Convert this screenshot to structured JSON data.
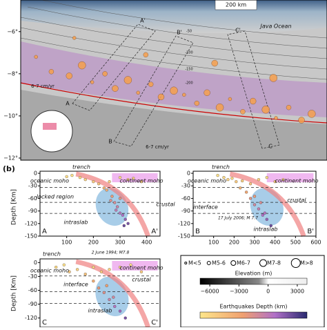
{
  "panel_label": "(b)",
  "chart_data": [
    {
      "type": "map",
      "ylim": [
        -12.1,
        -4.5
      ],
      "xlim": [
        104,
        116
      ],
      "yticks": [
        {
          "value": -6,
          "label": "−6°"
        },
        {
          "value": -8,
          "label": "−8°"
        },
        {
          "value": -10,
          "label": "−10°"
        },
        {
          "value": -12,
          "label": "−12°"
        }
      ],
      "annotations": [
        "200 km",
        "Java Ocean",
        "A'",
        "B'",
        "C'",
        "A",
        "B",
        "C",
        "6-7 cm/yr",
        "6-7 cm/yr",
        "-50",
        "-100",
        "-150",
        "-200"
      ],
      "x": [
        104.6,
        105.2,
        105.9,
        106.4,
        106.8,
        107.3,
        107.7,
        108.2,
        108.6,
        109.1,
        109.5,
        110.0,
        110.4,
        110.9,
        111.3,
        111.8,
        112.2,
        112.7,
        113.1,
        113.6,
        114.0,
        114.5,
        115.0,
        115.4,
        106.1,
        108.9,
        111.6,
        113.9
      ],
      "y": [
        -7.2,
        -7.9,
        -8.1,
        -7.6,
        -8.4,
        -8.0,
        -8.7,
        -8.3,
        -8.9,
        -8.5,
        -9.1,
        -8.8,
        -9.0,
        -9.4,
        -8.9,
        -9.6,
        -9.2,
        -9.8,
        -9.3,
        -9.7,
        -10.1,
        -9.6,
        -10.2,
        -9.9,
        -6.3,
        -7.1,
        -7.5,
        -8.2
      ],
      "color": "#f6a04d"
    },
    {
      "type": "scatter",
      "labels": [
        "A",
        "A'"
      ],
      "ylabel": "Depth [Km]",
      "xlim": [
        0,
        450
      ],
      "ylim": [
        -150,
        5
      ],
      "xticks": [
        100,
        200,
        300,
        400
      ],
      "yticks": [
        0,
        -30,
        -60,
        -90,
        -120,
        -150
      ],
      "annotations": [
        "trench",
        "oceanic moho",
        "continent moho",
        "locked region",
        "crustal",
        "intraslab"
      ],
      "x": [
        100,
        120,
        150,
        170,
        200,
        220,
        260,
        300,
        330,
        350,
        380,
        240,
        250,
        270,
        280,
        290,
        300,
        310,
        320,
        330,
        300,
        265,
        285,
        315
      ],
      "y": [
        -8,
        -5,
        -10,
        -15,
        -20,
        -25,
        -20,
        -10,
        -15,
        -12,
        -20,
        -35,
        -40,
        -55,
        -70,
        -80,
        -95,
        -100,
        -110,
        -120,
        -60,
        -65,
        -88,
        -125
      ]
    },
    {
      "type": "scatter",
      "labels": [
        "B",
        "B'"
      ],
      "xlim": [
        0,
        600
      ],
      "ylim": [
        -150,
        5
      ],
      "xticks": [
        100,
        200,
        300,
        400,
        500,
        600
      ],
      "yticks": [
        0,
        -30,
        -60,
        -90,
        -120,
        -150
      ],
      "annotations": [
        "trench",
        "oceanic moho",
        "continent moho",
        "interface",
        "crustal",
        "17 July 2006; M 7.7",
        "intraslab"
      ],
      "x": [
        120,
        150,
        170,
        190,
        210,
        240,
        280,
        320,
        360,
        400,
        440,
        230,
        260,
        280,
        300,
        320,
        340,
        360,
        380,
        300,
        330,
        350
      ],
      "y": [
        -5,
        -10,
        -15,
        -12,
        -20,
        -18,
        -25,
        -15,
        -10,
        -20,
        -15,
        -35,
        -45,
        -60,
        -75,
        -85,
        -100,
        -110,
        -125,
        -55,
        -70,
        -95
      ]
    },
    {
      "type": "scatter",
      "labels": [
        "C",
        "C'"
      ],
      "xlim": [
        0,
        450
      ],
      "ylim": [
        -140,
        8
      ],
      "yticks": [
        0,
        -30,
        -60,
        -90,
        -120
      ],
      "annotations": [
        "trench",
        "2 June 1994; M7.8",
        "oceanic moho",
        "continent moho",
        "interface",
        "crustal",
        "intraslab"
      ],
      "x": [
        60,
        90,
        110,
        140,
        170,
        200,
        230,
        260,
        300,
        340,
        380,
        200,
        220,
        240,
        260,
        280,
        300,
        320,
        250,
        275
      ],
      "y": [
        -10,
        -5,
        -20,
        -15,
        -25,
        -10,
        -20,
        -15,
        -10,
        -5,
        -20,
        -40,
        -55,
        -65,
        -80,
        -95,
        -105,
        -120,
        -50,
        -75
      ]
    },
    {
      "type": "colorbar",
      "title": "Elevation (m)",
      "xlim": [
        -7000,
        4000
      ],
      "xticks": [
        {
          "value": -6000,
          "label": "−6000"
        },
        {
          "value": -3000,
          "label": "−3000"
        },
        0,
        3000
      ],
      "magnitudes": [
        "M<5",
        "M5-6",
        "M6-7",
        "M7-8",
        "M>8"
      ],
      "depth_title": "Earthquakes Depth (km)"
    }
  ]
}
